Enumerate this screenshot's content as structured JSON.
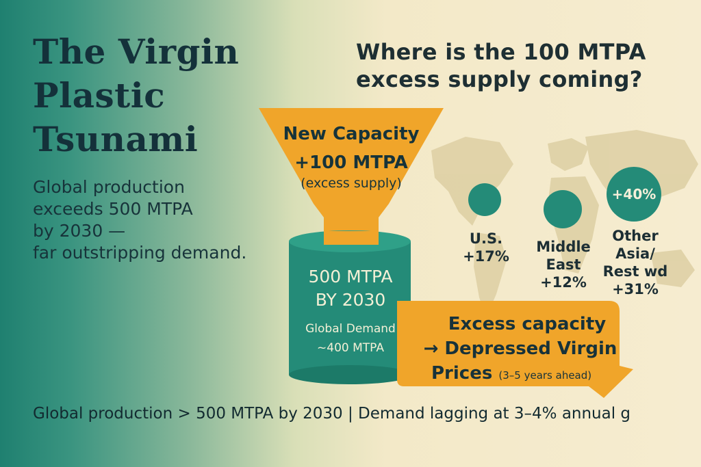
{
  "title": [
    "The Virgin",
    "Plastic",
    "Tsunami"
  ],
  "subtitle": [
    "Global production",
    "exceeds 500 MTPA",
    "by 2030 —",
    "far outstripping demand."
  ],
  "question": [
    "Where is the 100 MTPA",
    "excess supply coming?"
  ],
  "funnel": {
    "title": "New Capacity",
    "value": "+100 MTPA",
    "note": "(excess supply)"
  },
  "barrel": {
    "line1": "500 MTPA",
    "line2": "BY 2030",
    "line3": "Global Demand",
    "line4": "~400 MTPA"
  },
  "regions": [
    {
      "name_lines": [
        "U.S.",
        "+17%"
      ]
    },
    {
      "name_lines": [
        "Middle",
        "East",
        "+12%"
      ]
    },
    {
      "badge": "+40%",
      "name_lines": [
        "Other",
        "Asia/",
        "Rest wd",
        "+31%"
      ]
    }
  ],
  "callout": {
    "line1": "Excess capacity",
    "line2": "→ Depressed Virgin",
    "line3_main": "Prices",
    "line3_note": "(3–5 years ahead)"
  },
  "footer": "Global production > 500 MTPA by 2030 | Demand lagging at 3–4% annual g",
  "colors": {
    "teal": "#248b78",
    "orange": "#f0a52a",
    "dark_text": "#14313a",
    "map": "#ddcfa3"
  }
}
